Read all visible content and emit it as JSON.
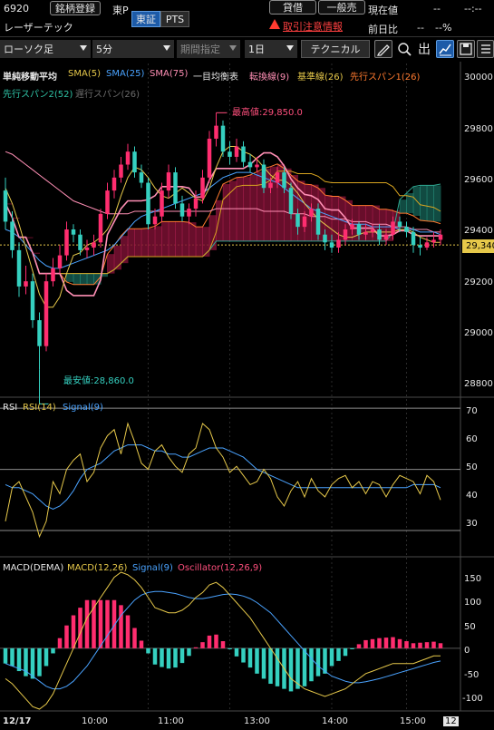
{
  "header": {
    "code": "6920",
    "name": "レーザーテック",
    "market_short": "東P",
    "register_label": "銘柄登録",
    "exchange_tabs": [
      "東証",
      "PTS"
    ],
    "credit_label": "貸借",
    "general_label": "一般売",
    "warning_text": "取引注意情報",
    "current_price_label": "現在値",
    "current_price_value": "--",
    "current_time": "--:--",
    "prev_ratio_label": "前日比",
    "prev_ratio_value": "--",
    "prev_ratio_pct": "--%"
  },
  "toolbar": {
    "chart_type": "ローソク足",
    "interval": "5分",
    "period": "期間指定",
    "range": "1日",
    "technical_label": "テクニカル",
    "icons": [
      "pencil-icon",
      "zoom-in-icon",
      "zoom-out-icon",
      "out-icon",
      "chart-type-icon",
      "save-icon",
      "list-icon"
    ]
  },
  "indicators": {
    "ma_title": "単純移動平均",
    "sma5": "SMA(5)",
    "sma25": "SMA(25)",
    "sma75": "SMA(75)",
    "ichimoku_title": "一目均衡表",
    "tenkan": "転換線(9)",
    "kijun": "基準線(26)",
    "senkou1": "先行スパン1(26)",
    "senkou2": "先行スパン2(52)",
    "chikou": "遅行スパン(26)",
    "high_label": "最高値:29,850.0",
    "low_label": "最安値:28,860.0",
    "current_price_tag": "29,340",
    "colors": {
      "sma5": "#e6c84a",
      "sma25": "#4aa3ff",
      "sma75": "#ff8fb5",
      "tenkan": "#ff8fb5",
      "kijun": "#d9a520",
      "senkou1": "#ff7a2f",
      "senkou2": "#2fa891",
      "up": "#ff2d6f",
      "down": "#35d0c0"
    }
  },
  "price_axis": [
    "30000",
    "29800",
    "29600",
    "29400",
    "29200",
    "29000",
    "28800"
  ],
  "rsi_panel": {
    "title": "RSI",
    "rsi": "RSI(14)",
    "signal": "Signal(9)",
    "axis": [
      "70",
      "60",
      "50",
      "40",
      "30"
    ]
  },
  "macd_panel": {
    "title": "MACD(DEMA)",
    "macd": "MACD(12,26)",
    "signal": "Signal(9)",
    "oscillator": "Oscillator(12,26,9)",
    "axis": [
      "150",
      "100",
      "50",
      "0",
      "-50",
      "-100"
    ]
  },
  "time_axis": {
    "date": "12/17",
    "labels": [
      "10:00",
      "11:00",
      "13:00",
      "14:00",
      "15:00"
    ],
    "end_label": "12"
  },
  "chart_data": [
    {
      "type": "candlestick",
      "title": "",
      "interval": "5分",
      "ylim": [
        28760,
        30040
      ],
      "x": [
        "09:00",
        "09:05",
        "09:10",
        "09:15",
        "09:20",
        "09:25",
        "09:30",
        "09:35",
        "09:40",
        "09:45",
        "09:50",
        "09:55",
        "10:00",
        "10:05",
        "10:10",
        "10:15",
        "10:20",
        "10:25",
        "10:30",
        "10:35",
        "10:40",
        "10:45",
        "10:50",
        "10:55",
        "11:00",
        "11:05",
        "11:10",
        "11:15",
        "11:20",
        "11:25",
        "12:30",
        "12:35",
        "12:40",
        "12:45",
        "12:50",
        "12:55",
        "13:00",
        "13:05",
        "13:10",
        "13:15",
        "13:20",
        "13:25",
        "13:30",
        "13:35",
        "13:40",
        "13:45",
        "13:50",
        "13:55",
        "14:00",
        "14:05",
        "14:10",
        "14:15",
        "14:20",
        "14:25",
        "14:30",
        "14:35",
        "14:40",
        "14:45",
        "14:50",
        "14:55",
        "15:00",
        "15:05",
        "15:10",
        "15:15",
        "15:20"
      ],
      "open": [
        29550,
        29430,
        29320,
        29180,
        29200,
        29050,
        28950,
        29200,
        29250,
        29300,
        29400,
        29380,
        29320,
        29330,
        29350,
        29460,
        29550,
        29600,
        29650,
        29700,
        29620,
        29580,
        29420,
        29450,
        29550,
        29620,
        29500,
        29450,
        29480,
        29520,
        29600,
        29750,
        29800,
        29700,
        29680,
        29720,
        29660,
        29640,
        29650,
        29560,
        29580,
        29620,
        29560,
        29460,
        29410,
        29450,
        29480,
        29380,
        29350,
        29330,
        29360,
        29400,
        29420,
        29380,
        29390,
        29400,
        29360,
        29380,
        29430,
        29410,
        29390,
        29340,
        29330,
        29350,
        29360
      ],
      "close": [
        29430,
        29320,
        29180,
        29200,
        29050,
        28950,
        29200,
        29250,
        29300,
        29400,
        29380,
        29320,
        29330,
        29350,
        29460,
        29550,
        29600,
        29650,
        29700,
        29620,
        29580,
        29420,
        29450,
        29550,
        29620,
        29500,
        29450,
        29480,
        29520,
        29600,
        29750,
        29800,
        29700,
        29680,
        29720,
        29660,
        29640,
        29650,
        29560,
        29580,
        29620,
        29560,
        29460,
        29410,
        29450,
        29480,
        29380,
        29350,
        29330,
        29360,
        29400,
        29420,
        29380,
        29390,
        29400,
        29360,
        29380,
        29430,
        29410,
        29390,
        29340,
        29330,
        29350,
        29360,
        29380
      ],
      "high": [
        29600,
        29470,
        29350,
        29260,
        29230,
        29080,
        29230,
        29290,
        29340,
        29430,
        29420,
        29400,
        29360,
        29380,
        29480,
        29580,
        29630,
        29680,
        29730,
        29720,
        29650,
        29600,
        29480,
        29580,
        29650,
        29640,
        29530,
        29500,
        29550,
        29630,
        29780,
        29850,
        29820,
        29740,
        29750,
        29740,
        29690,
        29680,
        29670,
        29600,
        29640,
        29640,
        29580,
        29480,
        29470,
        29500,
        29500,
        29400,
        29380,
        29390,
        29420,
        29440,
        29430,
        29420,
        29420,
        29420,
        29400,
        29450,
        29450,
        29430,
        29410,
        29370,
        29370,
        29390,
        29400
      ],
      "low": [
        29400,
        29290,
        29140,
        29150,
        29020,
        28860,
        28930,
        29180,
        29230,
        29280,
        29350,
        29300,
        29290,
        29300,
        29330,
        29440,
        29520,
        29580,
        29630,
        29600,
        29560,
        29400,
        29400,
        29430,
        29520,
        29480,
        29430,
        29420,
        29450,
        29500,
        29580,
        29720,
        29680,
        29650,
        29660,
        29640,
        29620,
        29620,
        29540,
        29540,
        29560,
        29540,
        29440,
        29380,
        29390,
        29430,
        29360,
        29320,
        29310,
        29310,
        29340,
        29380,
        29360,
        29360,
        29370,
        29340,
        29340,
        29360,
        29390,
        29370,
        29310,
        29300,
        29320,
        29330,
        29340
      ],
      "series": [
        {
          "name": "SMA(5)",
          "values": [
            29560,
            29500,
            29420,
            29330,
            29240,
            29150,
            29100,
            29100,
            29140,
            29230,
            29300,
            29310,
            29340,
            29350,
            29370,
            29400,
            29450,
            29530,
            29600,
            29640,
            29630,
            29600,
            29560,
            29530,
            29520,
            29540,
            29560,
            29540,
            29520,
            29510,
            29560,
            29640,
            29700,
            29720,
            29720,
            29700,
            29690,
            29670,
            29640,
            29610,
            29590,
            29590,
            29570,
            29540,
            29500,
            29470,
            29440,
            29420,
            29400,
            29380,
            29370,
            29370,
            29380,
            29390,
            29390,
            29390,
            29390,
            29390,
            29400,
            29400,
            29390,
            29370,
            29360,
            29350,
            29350
          ]
        },
        {
          "name": "SMA(25)",
          "values": [
            29400,
            29390,
            29370,
            29340,
            29310,
            29280,
            29260,
            29250,
            29250,
            29260,
            29270,
            29280,
            29290,
            29300,
            29310,
            29320,
            29340,
            29370,
            29400,
            29430,
            29450,
            29460,
            29470,
            29480,
            29490,
            29500,
            29510,
            29520,
            29530,
            29540,
            29560,
            29580,
            29600,
            29610,
            29620,
            29620,
            29620,
            29610,
            29600,
            29590,
            29580,
            29560,
            29540,
            29520,
            29500,
            29480,
            29470,
            29460,
            29450,
            29440,
            29430,
            29420,
            29420,
            29420,
            29410,
            29410,
            29410,
            29410,
            29400,
            29400,
            29400,
            29390,
            29390,
            29390,
            29380
          ]
        },
        {
          "name": "SMA(75)",
          "values": [
            29700,
            29690,
            29670,
            29650,
            29630,
            29610,
            29590,
            29570,
            29550,
            29530,
            29510,
            29500,
            29490,
            29480,
            29470,
            29460,
            29460,
            29460,
            29460,
            29470,
            29470,
            29470,
            29470,
            29470,
            29470,
            29470,
            29470,
            29470,
            29470,
            29470,
            29470,
            29480,
            29480,
            29480,
            29480,
            29480,
            29480,
            29480,
            29470,
            29470,
            29470,
            29470,
            29460,
            29460,
            29460,
            29450,
            29450,
            29450,
            29440,
            29440,
            29440,
            29430,
            29430,
            29430,
            29420,
            29420,
            29420,
            29410,
            29410,
            29410,
            29400,
            29400,
            29400,
            29390,
            29390
          ]
        }
      ]
    },
    {
      "type": "line",
      "title": "RSI",
      "ylim": [
        22,
        73
      ],
      "series": [
        {
          "name": "RSI(14)",
          "values": [
            33,
            44,
            46,
            41,
            36,
            28,
            33,
            46,
            42,
            50,
            53,
            55,
            46,
            49,
            57,
            61,
            63,
            55,
            65,
            59,
            52,
            50,
            56,
            58,
            54,
            51,
            49,
            55,
            57,
            65,
            63,
            57,
            54,
            49,
            51,
            48,
            45,
            46,
            50,
            47,
            41,
            38,
            43,
            46,
            41,
            47,
            43,
            41,
            45,
            47,
            48,
            44,
            46,
            42,
            46,
            45,
            41,
            45,
            48,
            47,
            46,
            42,
            48,
            46,
            40
          ]
        },
        {
          "name": "Signal(9)",
          "values": [
            45,
            44,
            44,
            43,
            42,
            40,
            38,
            37,
            38,
            40,
            43,
            47,
            50,
            51,
            52,
            54,
            56,
            57,
            58,
            58,
            58,
            57,
            56,
            56,
            55,
            55,
            54,
            54,
            55,
            56,
            57,
            57,
            57,
            56,
            55,
            54,
            52,
            50,
            49,
            48,
            47,
            46,
            45,
            44,
            44,
            44,
            44,
            44,
            44,
            44,
            44,
            44,
            44,
            44,
            44,
            44,
            44,
            44,
            44,
            44,
            45,
            45,
            45,
            45,
            44
          ]
        }
      ]
    },
    {
      "type": "bar",
      "title": "MACD(DEMA)",
      "ylim": [
        -120,
        175
      ],
      "series": [
        {
          "name": "MACD(12,26)",
          "values": [
            -60,
            -70,
            -85,
            -100,
            -115,
            -120,
            -110,
            -90,
            -60,
            -30,
            0,
            30,
            60,
            80,
            100,
            120,
            140,
            150,
            145,
            135,
            120,
            100,
            80,
            75,
            70,
            70,
            75,
            85,
            100,
            110,
            125,
            130,
            120,
            105,
            90,
            75,
            60,
            40,
            20,
            0,
            -20,
            -40,
            -60,
            -70,
            -80,
            -85,
            -90,
            -95,
            -90,
            -85,
            -80,
            -70,
            -60,
            -50,
            -45,
            -40,
            -35,
            -30,
            -30,
            -30,
            -30,
            -25,
            -20,
            -15,
            -15
          ]
        },
        {
          "name": "Signal(9)",
          "values": [
            -30,
            -35,
            -40,
            -45,
            -55,
            -65,
            -75,
            -80,
            -80,
            -75,
            -65,
            -50,
            -35,
            -15,
            5,
            25,
            45,
            65,
            80,
            95,
            105,
            110,
            112,
            112,
            110,
            108,
            104,
            100,
            98,
            98,
            100,
            103,
            106,
            107,
            106,
            103,
            98,
            90,
            80,
            70,
            55,
            40,
            25,
            10,
            -5,
            -20,
            -35,
            -45,
            -55,
            -60,
            -65,
            -68,
            -68,
            -66,
            -63,
            -60,
            -56,
            -52,
            -48,
            -44,
            -40,
            -36,
            -32,
            -28,
            -25
          ]
        },
        {
          "name": "Oscillator(12,26,9)",
          "values": [
            -30,
            -35,
            -45,
            -55,
            -60,
            -55,
            -35,
            -10,
            20,
            45,
            65,
            80,
            95,
            95,
            95,
            95,
            95,
            85,
            65,
            40,
            15,
            -10,
            -32,
            -37,
            -40,
            -38,
            -29,
            -15,
            2,
            12,
            25,
            27,
            14,
            -2,
            -16,
            -28,
            -38,
            -50,
            -60,
            -70,
            -75,
            -80,
            -85,
            -80,
            -75,
            -65,
            -55,
            -50,
            -35,
            -25,
            -15,
            -2,
            8,
            16,
            18,
            20,
            21,
            22,
            18,
            14,
            10,
            11,
            12,
            13,
            10
          ]
        }
      ]
    }
  ]
}
